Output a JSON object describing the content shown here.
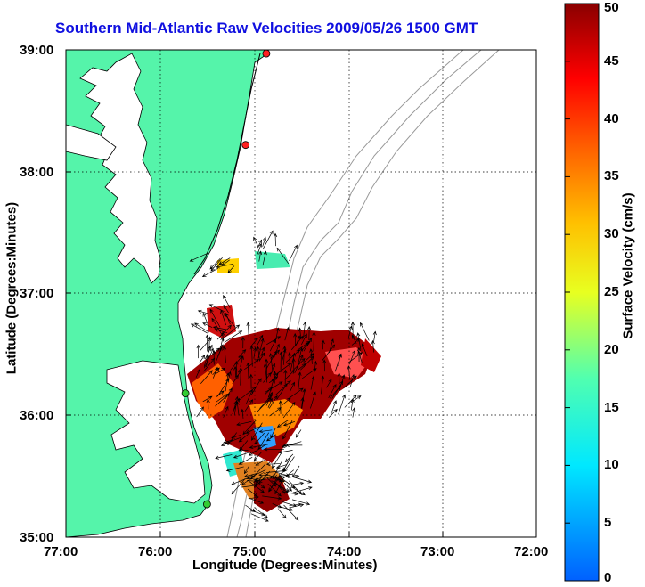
{
  "title": "Southern Mid-Atlantic Raw Velocities 2009/05/26 1500 GMT",
  "x_axis": {
    "label": "Longitude (Degrees:Minutes)",
    "ticks": [
      "77:00",
      "76:00",
      "75:00",
      "74:00",
      "73:00",
      "72:00"
    ]
  },
  "y_axis": {
    "label": "Latitude (Degrees:Minutes)",
    "ticks": [
      "39:00",
      "38:00",
      "37:00",
      "36:00",
      "35:00"
    ]
  },
  "colorbar": {
    "label": "Surface Velocity (cm/s)",
    "ticks": [
      "50",
      "45",
      "40",
      "35",
      "30",
      "25",
      "20",
      "15",
      "10",
      "5",
      "0"
    ],
    "min": 0,
    "max": 50
  },
  "colors": {
    "land": "#55f4aa",
    "title": "#1010e0",
    "station": "#ff2020",
    "station_green": "#33cc33",
    "bathymetry": "#999999"
  },
  "map": {
    "lon_range": [
      -77,
      -72
    ],
    "lat_range": [
      35,
      39
    ],
    "grid": true,
    "stations": [
      {
        "lat": 38.97,
        "lon": -74.87,
        "color": "red"
      },
      {
        "lat": 38.22,
        "lon": -75.09,
        "color": "red"
      },
      {
        "lat": 36.18,
        "lon": -75.73,
        "color": "green"
      },
      {
        "lat": 35.27,
        "lon": -75.5,
        "color": "green"
      }
    ]
  }
}
